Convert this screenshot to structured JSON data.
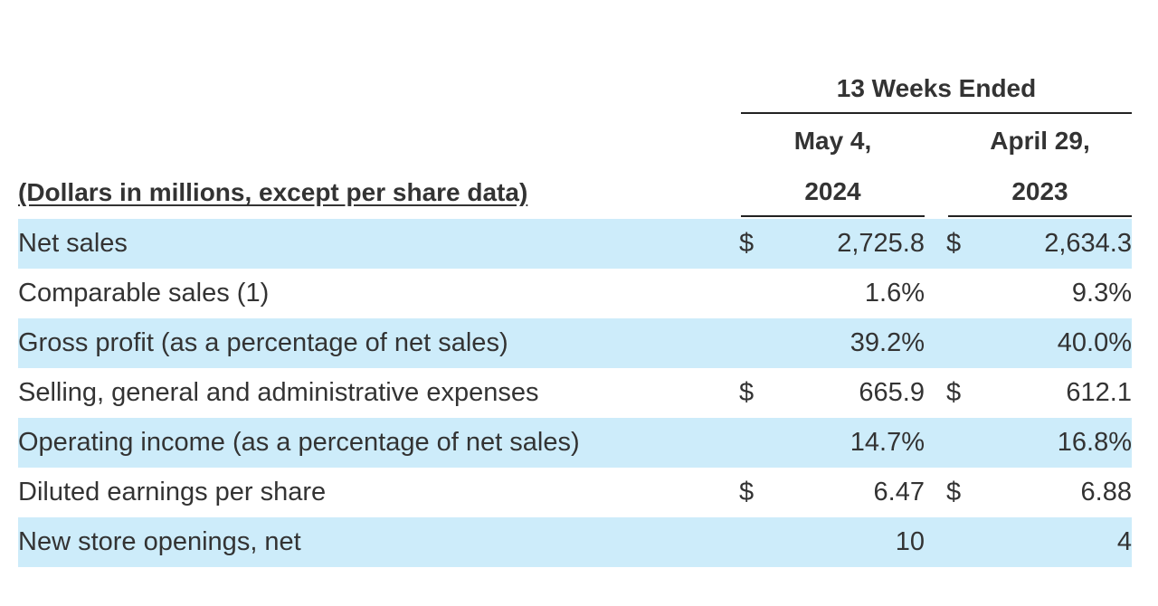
{
  "table": {
    "period_header": "13 Weeks Ended",
    "columns": [
      {
        "line1": "May 4,",
        "line2": "2024"
      },
      {
        "line1": "April 29,",
        "line2": "2023"
      }
    ],
    "units_label": "(Dollars in millions, except per share data)",
    "rows": [
      {
        "label": "Net sales",
        "cur_a": "$",
        "val_a": "2,725.8",
        "cur_b": "$",
        "val_b": "2,634.3"
      },
      {
        "label": "Comparable sales (1)",
        "cur_a": "",
        "val_a": "1.6%",
        "cur_b": "",
        "val_b": "9.3%"
      },
      {
        "label": "Gross profit (as a percentage of net sales)",
        "cur_a": "",
        "val_a": "39.2%",
        "cur_b": "",
        "val_b": "40.0%"
      },
      {
        "label": "Selling, general and administrative expenses",
        "cur_a": "$",
        "val_a": "665.9",
        "cur_b": "$",
        "val_b": "612.1"
      },
      {
        "label": "Operating income (as a percentage of net sales)",
        "cur_a": "",
        "val_a": "14.7%",
        "cur_b": "",
        "val_b": "16.8%"
      },
      {
        "label": "Diluted earnings per share",
        "cur_a": "$",
        "val_a": "6.47",
        "cur_b": "$",
        "val_b": "6.88"
      },
      {
        "label": "New store openings, net",
        "cur_a": "",
        "val_a": "10",
        "cur_b": "",
        "val_b": "4"
      }
    ],
    "row_shade_color": "#cdecfa"
  }
}
